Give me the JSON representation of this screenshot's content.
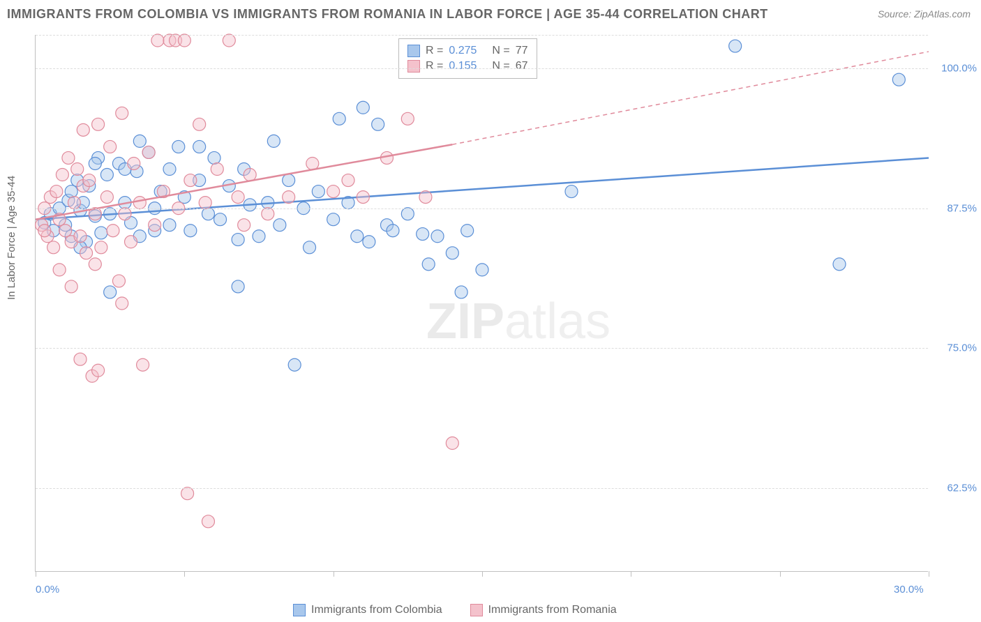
{
  "title": "IMMIGRANTS FROM COLOMBIA VS IMMIGRANTS FROM ROMANIA IN LABOR FORCE | AGE 35-44 CORRELATION CHART",
  "source": "Source: ZipAtlas.com",
  "y_axis_label": "In Labor Force | Age 35-44",
  "watermark_bold": "ZIP",
  "watermark_thin": "atlas",
  "chart": {
    "type": "scatter",
    "xlim": [
      0,
      30
    ],
    "ylim": [
      55,
      103
    ],
    "y_ticks": [
      62.5,
      75.0,
      87.5,
      100.0
    ],
    "y_tick_labels": [
      "62.5%",
      "75.0%",
      "87.5%",
      "100.0%"
    ],
    "x_ticks": [
      0,
      5,
      10,
      15,
      20,
      25,
      30
    ],
    "x_tick_labels_shown": {
      "0": "0.0%",
      "30": "30.0%"
    },
    "background_color": "#ffffff",
    "grid_color": "#dddddd",
    "axis_color": "#c0c0c0",
    "text_color": "#666666",
    "value_color": "#5b8fd6",
    "marker_radius": 9,
    "marker_opacity": 0.45,
    "line_width": 2.5
  },
  "series": [
    {
      "name": "Immigrants from Colombia",
      "color_fill": "#a8c7ec",
      "color_stroke": "#5b8fd6",
      "r_value": "0.275",
      "n_value": "77",
      "trend": {
        "x1": 0,
        "y1": 86.5,
        "x2": 30,
        "y2": 92.0,
        "dash_after_x": 30
      },
      "points": [
        [
          0.3,
          86.2
        ],
        [
          0.5,
          87.0
        ],
        [
          0.6,
          85.5
        ],
        [
          0.8,
          87.5
        ],
        [
          1.0,
          86.0
        ],
        [
          1.1,
          88.2
        ],
        [
          1.2,
          85.0
        ],
        [
          1.4,
          90.0
        ],
        [
          1.5,
          87.3
        ],
        [
          1.6,
          88.0
        ],
        [
          1.7,
          84.5
        ],
        [
          1.8,
          89.5
        ],
        [
          2.0,
          86.8
        ],
        [
          2.1,
          92.0
        ],
        [
          2.2,
          85.3
        ],
        [
          2.4,
          90.5
        ],
        [
          2.5,
          87.0
        ],
        [
          2.8,
          91.5
        ],
        [
          3.0,
          88.0
        ],
        [
          3.2,
          86.2
        ],
        [
          3.4,
          90.8
        ],
        [
          3.5,
          85.0
        ],
        [
          3.8,
          92.5
        ],
        [
          4.0,
          87.5
        ],
        [
          4.2,
          89.0
        ],
        [
          4.5,
          91.0
        ],
        [
          4.5,
          86.0
        ],
        [
          4.8,
          93.0
        ],
        [
          5.0,
          88.5
        ],
        [
          5.2,
          85.5
        ],
        [
          5.5,
          90.0
        ],
        [
          5.8,
          87.0
        ],
        [
          6.0,
          92.0
        ],
        [
          6.2,
          86.5
        ],
        [
          6.5,
          89.5
        ],
        [
          6.8,
          84.7
        ],
        [
          7.0,
          91.0
        ],
        [
          7.2,
          87.8
        ],
        [
          7.5,
          85.0
        ],
        [
          7.8,
          88.0
        ],
        [
          8.0,
          93.5
        ],
        [
          8.2,
          86.0
        ],
        [
          8.5,
          90.0
        ],
        [
          8.7,
          73.5
        ],
        [
          9.0,
          87.5
        ],
        [
          9.2,
          84.0
        ],
        [
          9.5,
          89.0
        ],
        [
          10.0,
          86.5
        ],
        [
          10.2,
          95.5
        ],
        [
          10.5,
          88.0
        ],
        [
          10.8,
          85.0
        ],
        [
          11.0,
          96.5
        ],
        [
          11.2,
          84.5
        ],
        [
          11.5,
          95.0
        ],
        [
          11.8,
          86.0
        ],
        [
          12.0,
          85.5
        ],
        [
          12.5,
          87.0
        ],
        [
          13.0,
          85.2
        ],
        [
          13.2,
          82.5
        ],
        [
          13.5,
          85.0
        ],
        [
          14.0,
          83.5
        ],
        [
          14.3,
          80.0
        ],
        [
          14.5,
          85.5
        ],
        [
          15.0,
          82.0
        ],
        [
          18.0,
          89.0
        ],
        [
          23.5,
          102.0
        ],
        [
          27.0,
          82.5
        ],
        [
          29.0,
          99.0
        ],
        [
          2.5,
          80.0
        ],
        [
          1.5,
          84.0
        ],
        [
          3.0,
          91.0
        ],
        [
          4.0,
          85.5
        ],
        [
          5.5,
          93.0
        ],
        [
          6.8,
          80.5
        ],
        [
          3.5,
          93.5
        ],
        [
          2.0,
          91.5
        ],
        [
          1.2,
          89.0
        ]
      ]
    },
    {
      "name": "Immigrants from Romania",
      "color_fill": "#f4c2cc",
      "color_stroke": "#e08a9b",
      "r_value": "0.155",
      "n_value": "67",
      "trend": {
        "x1": 0,
        "y1": 86.5,
        "x2": 14,
        "y2": 93.2,
        "dash_after_x": 14,
        "dash_x2": 30,
        "dash_y2": 101.5
      },
      "points": [
        [
          0.2,
          86.0
        ],
        [
          0.3,
          87.5
        ],
        [
          0.4,
          85.0
        ],
        [
          0.5,
          88.5
        ],
        [
          0.6,
          84.0
        ],
        [
          0.7,
          89.0
        ],
        [
          0.8,
          86.5
        ],
        [
          0.9,
          90.5
        ],
        [
          1.0,
          85.5
        ],
        [
          1.1,
          92.0
        ],
        [
          1.2,
          84.5
        ],
        [
          1.3,
          88.0
        ],
        [
          1.4,
          91.0
        ],
        [
          1.5,
          85.0
        ],
        [
          1.5,
          74.0
        ],
        [
          1.6,
          89.5
        ],
        [
          1.7,
          83.5
        ],
        [
          1.8,
          90.0
        ],
        [
          1.9,
          72.5
        ],
        [
          2.0,
          87.0
        ],
        [
          2.1,
          95.0
        ],
        [
          2.1,
          73.0
        ],
        [
          2.2,
          84.0
        ],
        [
          2.4,
          88.5
        ],
        [
          2.5,
          93.0
        ],
        [
          2.6,
          85.5
        ],
        [
          2.8,
          81.0
        ],
        [
          2.9,
          79.0
        ],
        [
          2.9,
          96.0
        ],
        [
          3.0,
          87.0
        ],
        [
          3.2,
          84.5
        ],
        [
          3.3,
          91.5
        ],
        [
          3.5,
          88.0
        ],
        [
          3.6,
          73.5
        ],
        [
          3.8,
          92.5
        ],
        [
          4.0,
          86.0
        ],
        [
          4.1,
          102.5
        ],
        [
          4.3,
          89.0
        ],
        [
          4.5,
          102.5
        ],
        [
          4.7,
          102.5
        ],
        [
          4.8,
          87.5
        ],
        [
          5.0,
          102.5
        ],
        [
          5.1,
          62.0
        ],
        [
          5.2,
          90.0
        ],
        [
          5.5,
          95.0
        ],
        [
          5.7,
          88.0
        ],
        [
          5.8,
          59.5
        ],
        [
          6.1,
          91.0
        ],
        [
          6.5,
          102.5
        ],
        [
          6.8,
          88.5
        ],
        [
          7.0,
          86.0
        ],
        [
          7.2,
          90.5
        ],
        [
          7.8,
          87.0
        ],
        [
          8.5,
          88.5
        ],
        [
          9.3,
          91.5
        ],
        [
          10.0,
          89.0
        ],
        [
          10.5,
          90.0
        ],
        [
          11.0,
          88.5
        ],
        [
          11.8,
          92.0
        ],
        [
          12.5,
          95.5
        ],
        [
          13.1,
          88.5
        ],
        [
          14.0,
          66.5
        ],
        [
          0.3,
          85.5
        ],
        [
          0.8,
          82.0
        ],
        [
          1.2,
          80.5
        ],
        [
          2.0,
          82.5
        ],
        [
          1.6,
          94.5
        ]
      ]
    }
  ],
  "legend_bottom": [
    {
      "label": "Immigrants from Colombia",
      "fill": "#a8c7ec",
      "stroke": "#5b8fd6"
    },
    {
      "label": "Immigrants from Romania",
      "fill": "#f4c2cc",
      "stroke": "#e08a9b"
    }
  ]
}
